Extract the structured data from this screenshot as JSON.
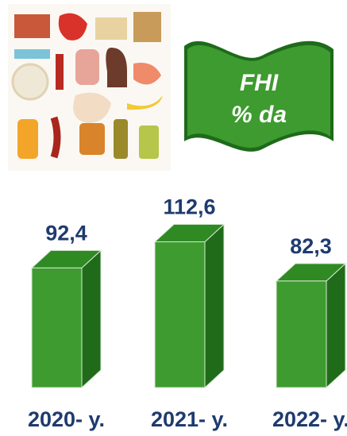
{
  "chart_data": {
    "type": "bar3d",
    "title": "FHI",
    "subtitle": "% da",
    "categories": [
      "2020- y.",
      "2021- y.",
      "2022- y."
    ],
    "values": [
      92.4,
      112.6,
      82.3
    ],
    "value_labels": [
      "92,4",
      "112,6",
      "82,3"
    ],
    "color": "#3d9b2f"
  }
}
